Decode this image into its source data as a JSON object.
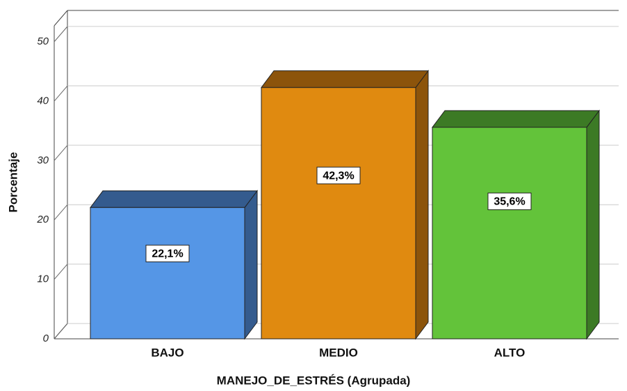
{
  "chart_data": {
    "type": "bar3d",
    "x_label": "MANEJO_DE_ESTRÉS (Agrupada)",
    "y_label": "Porcentaje",
    "categories": [
      "BAJO",
      "MEDIO",
      "ALTO"
    ],
    "values": [
      22.1,
      42.3,
      35.6
    ],
    "value_labels": [
      "22,1%",
      "42,3%",
      "35,6%"
    ],
    "colors": [
      "#5596e6",
      "#e08a10",
      "#63c33a"
    ],
    "side_colors": [
      "#345b8e",
      "#8c540b",
      "#3c7a25"
    ],
    "ylim": [
      0,
      50
    ],
    "yticks": [
      0,
      10,
      20,
      30,
      40,
      50
    ],
    "grid": true
  }
}
